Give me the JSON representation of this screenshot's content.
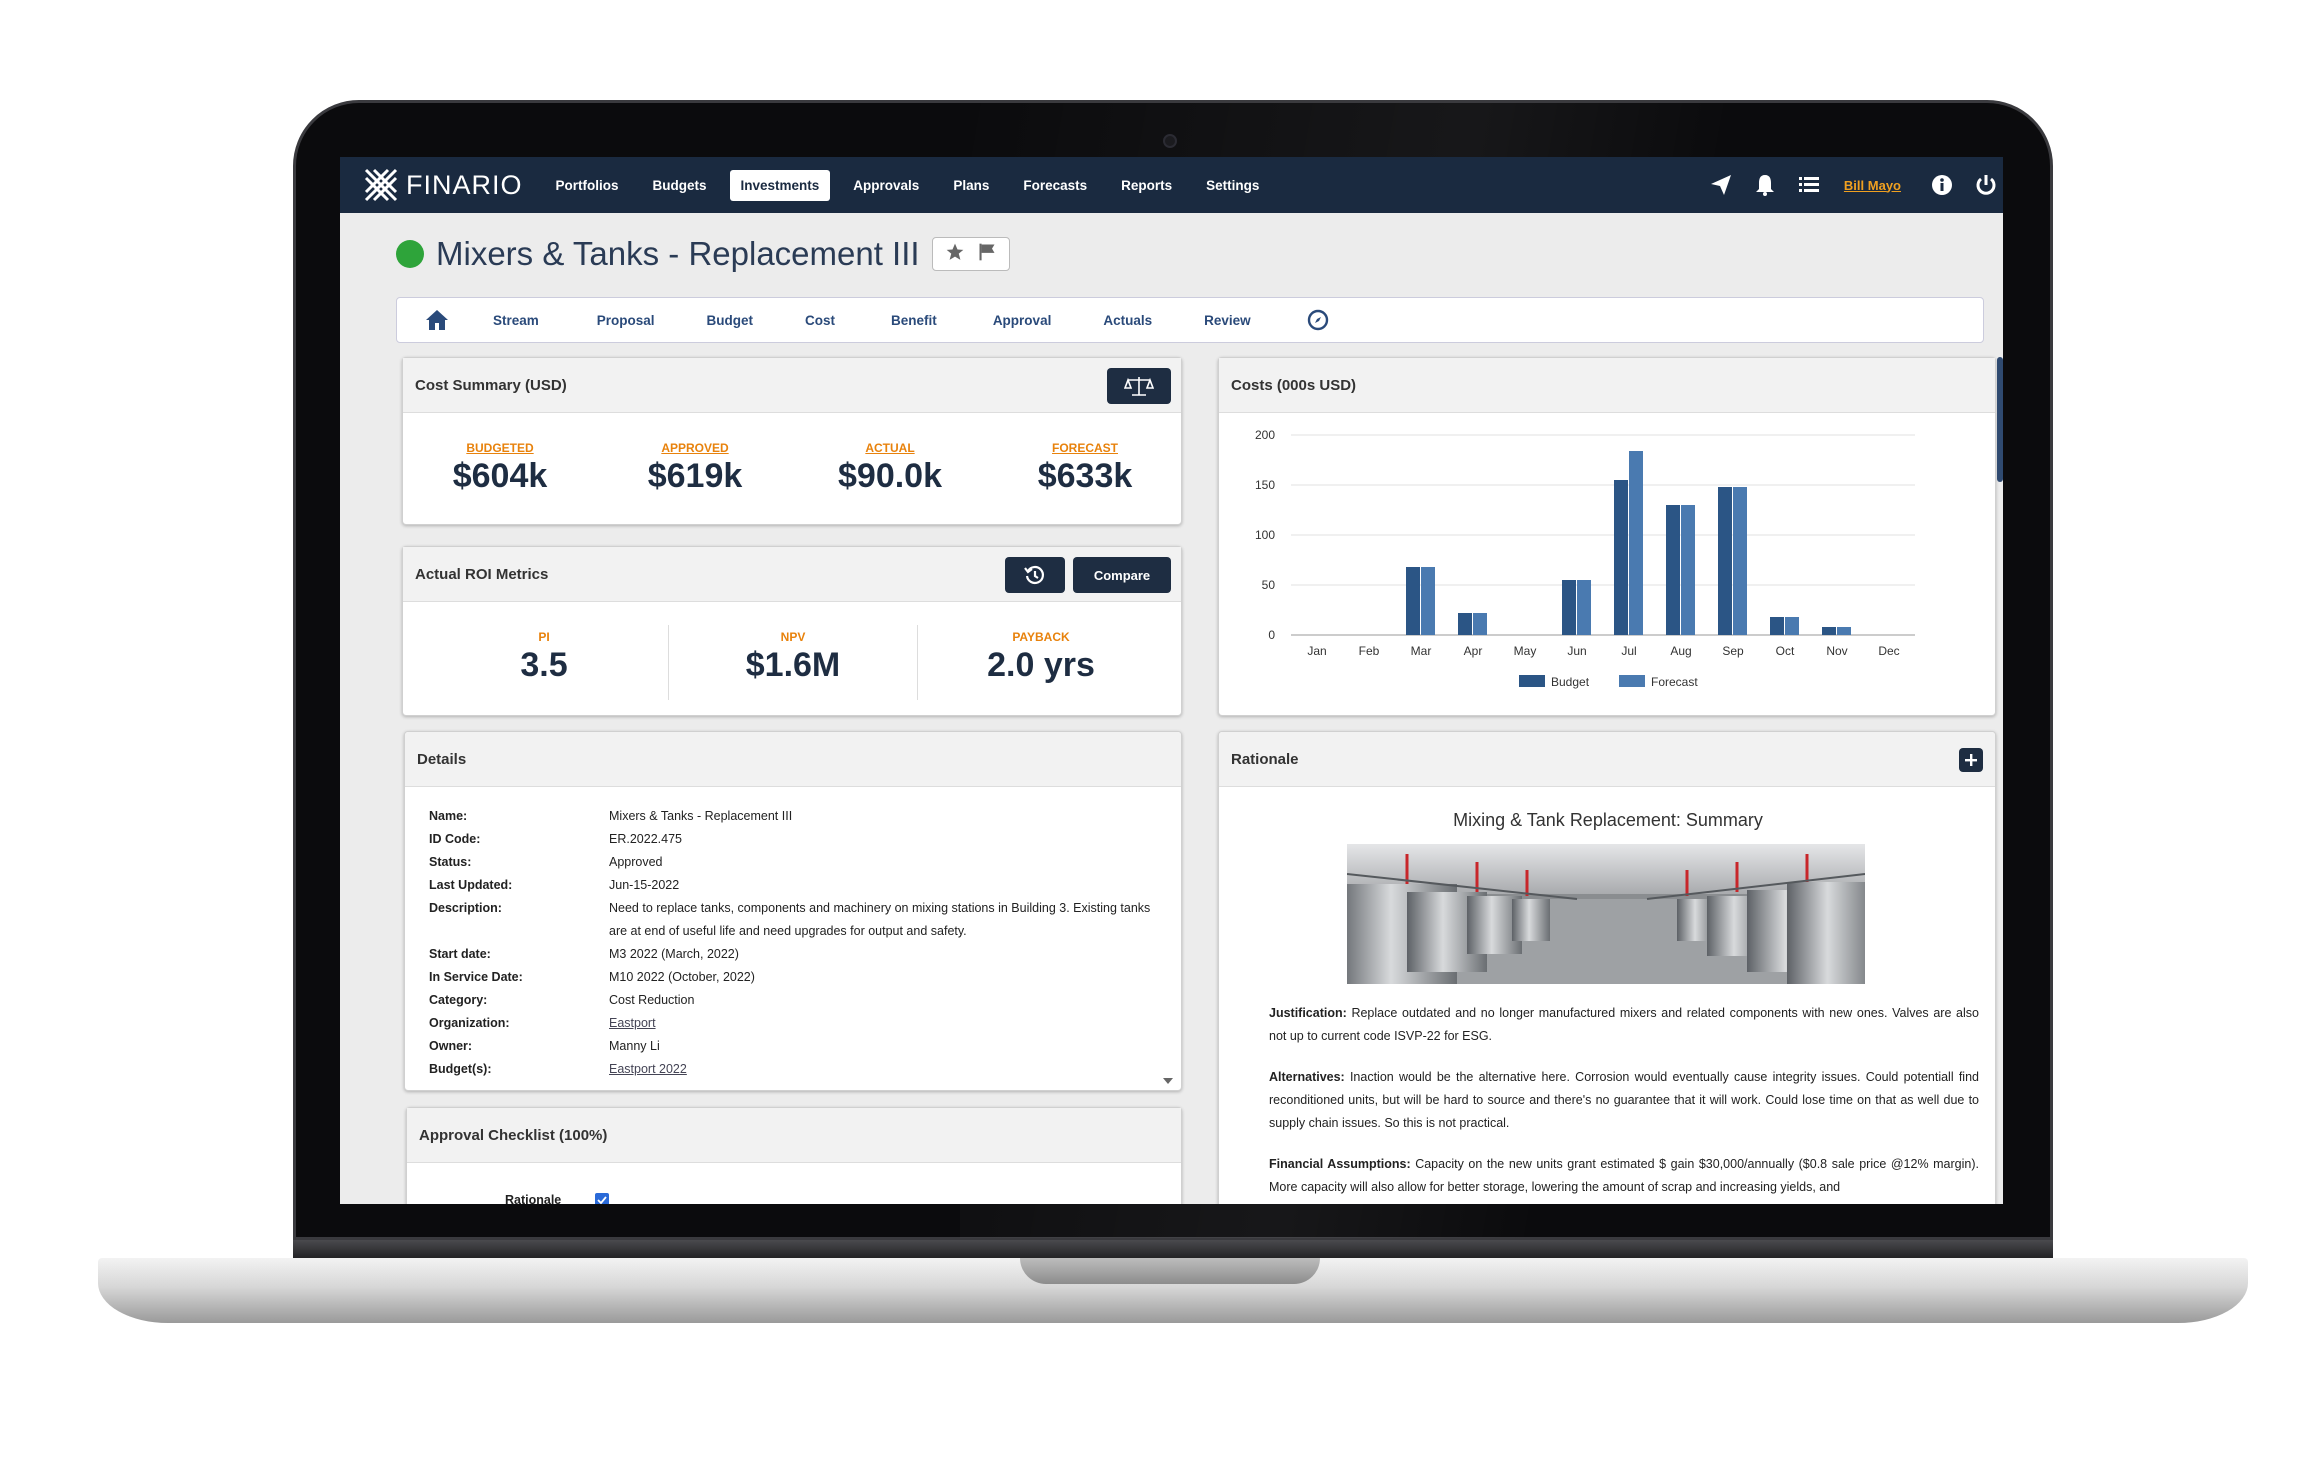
{
  "nav": {
    "logo": "FINARIO",
    "items": [
      "Portfolios",
      "Budgets",
      "Investments",
      "Approvals",
      "Plans",
      "Forecasts",
      "Reports",
      "Settings"
    ],
    "active": "Investments",
    "user": "Bill Mayo"
  },
  "page": {
    "title": "Mixers & Tanks - Replacement III"
  },
  "subnav": [
    "Stream",
    "Proposal",
    "Budget",
    "Cost",
    "Benefit",
    "Approval",
    "Actuals",
    "Review"
  ],
  "cost_summary": {
    "title": "Cost Summary (USD)",
    "metrics": [
      {
        "label": "BUDGETED",
        "value": "$604k"
      },
      {
        "label": "APPROVED",
        "value": "$619k"
      },
      {
        "label": "ACTUAL",
        "value": "$90.0k"
      },
      {
        "label": "FORECAST",
        "value": "$633k"
      }
    ]
  },
  "roi": {
    "title": "Actual ROI Metrics",
    "compare_label": "Compare",
    "metrics": [
      {
        "label": "PI",
        "value": "3.5"
      },
      {
        "label": "NPV",
        "value": "$1.6M"
      },
      {
        "label": "PAYBACK",
        "value": "2.0 yrs"
      }
    ]
  },
  "costs_chart": {
    "title": "Costs (000s USD)"
  },
  "chart_data": {
    "type": "bar",
    "title": "",
    "categories": [
      "Jan",
      "Feb",
      "Mar",
      "Apr",
      "May",
      "Jun",
      "Jul",
      "Aug",
      "Sep",
      "Oct",
      "Nov",
      "Dec"
    ],
    "series": [
      {
        "name": "Budget",
        "values": [
          0,
          0,
          68,
          22,
          0,
          55,
          155,
          130,
          148,
          18,
          8,
          0
        ]
      },
      {
        "name": "Forecast",
        "values": [
          0,
          0,
          68,
          22,
          0,
          55,
          184,
          130,
          148,
          18,
          8,
          0
        ]
      }
    ],
    "yticks": [
      "0",
      "50",
      "100",
      "150",
      "200"
    ],
    "ylim": [
      0,
      200
    ],
    "colors": {
      "Budget": "#2b5585",
      "Forecast": "#4a7ab0"
    },
    "legend": "bottom",
    "grid": true
  },
  "details": {
    "title": "Details",
    "rows": [
      {
        "key": "Name:",
        "val": "Mixers & Tanks - Replacement III"
      },
      {
        "key": "ID Code:",
        "val": "ER.2022.475"
      },
      {
        "key": "Status:",
        "val": "Approved"
      },
      {
        "key": "Last Updated:",
        "val": "Jun-15-2022"
      },
      {
        "key": "Description:",
        "val": "Need to replace tanks, components and machinery on mixing stations in Building 3. Existing tanks are at end of useful life and need upgrades for output and safety."
      },
      {
        "key": "Start date:",
        "val": "M3 2022 (March, 2022)"
      },
      {
        "key": "In Service Date:",
        "val": "M10 2022 (October, 2022)"
      },
      {
        "key": "Category:",
        "val": "Cost Reduction"
      },
      {
        "key": "Organization:",
        "val": "Eastport"
      },
      {
        "key": "Owner:",
        "val": "Manny Li"
      },
      {
        "key": "Budget(s):",
        "val": "Eastport 2022"
      }
    ]
  },
  "checklist": {
    "title": "Approval Checklist (100%)",
    "first_item": "Rationale"
  },
  "rationale": {
    "title": "Rationale",
    "heading": "Mixing & Tank Replacement: Summary",
    "justification_label": "Justification:",
    "justification": " Replace outdated and no longer manufactured mixers and related components with new ones. Valves are also not up to current code ISVP-22 for ESG.",
    "alternatives_label": "Alternatives:",
    "alternatives": " Inaction would be the alternative here. Corrosion would eventually cause integrity issues. Could potentiall find reconditioned units, but will be hard to source and there's no guarantee that it will work. Could lose time on that as well due to supply chain issues. So this is not practical.",
    "financial_label": "Financial Assumptions:",
    "financial": " Capacity on the new units grant estimated $ gain $30,000/annually ($0.8 sale price @12% margin). More capacity will also allow for better storage, lowering the amount of scrap and increasing yields, and"
  }
}
